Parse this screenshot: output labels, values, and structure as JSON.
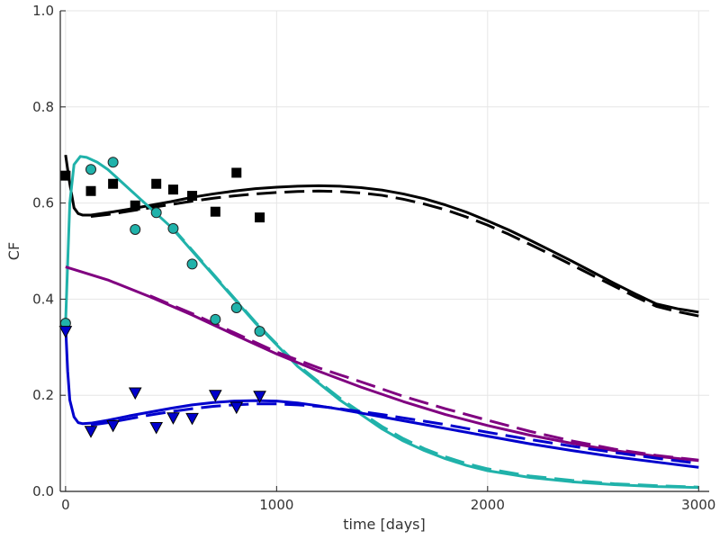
{
  "chart_data": {
    "type": "line",
    "title": "",
    "xlabel": "time [days]",
    "ylabel": "CF",
    "xlim": [
      -25,
      3050
    ],
    "ylim": [
      0,
      1
    ],
    "xticks": [
      0,
      1000,
      2000,
      3000
    ],
    "xtick_labels": [
      "0",
      "1000",
      "2000",
      "3000"
    ],
    "yticks": [
      0,
      0.2,
      0.4,
      0.6,
      0.8,
      1.0
    ],
    "ytick_labels": [
      "0.0",
      "0.2",
      "0.4",
      "0.6",
      "0.8",
      "1.0"
    ],
    "grid": true,
    "legend": "none",
    "colors": {
      "black": "#000000",
      "teal": "#20b2aa",
      "purple": "#800080",
      "blue": "#0000cd"
    },
    "series": [
      {
        "kind": "line",
        "style": "solid",
        "color": "black",
        "points": [
          [
            0,
            0.7
          ],
          [
            20,
            0.64
          ],
          [
            40,
            0.59
          ],
          [
            60,
            0.578
          ],
          [
            80,
            0.575
          ],
          [
            120,
            0.575
          ],
          [
            200,
            0.58
          ],
          [
            300,
            0.587
          ],
          [
            400,
            0.595
          ],
          [
            500,
            0.603
          ],
          [
            600,
            0.612
          ],
          [
            700,
            0.619
          ],
          [
            800,
            0.625
          ],
          [
            900,
            0.63
          ],
          [
            1000,
            0.633
          ],
          [
            1100,
            0.635
          ],
          [
            1200,
            0.636
          ],
          [
            1300,
            0.635
          ],
          [
            1400,
            0.632
          ],
          [
            1500,
            0.627
          ],
          [
            1600,
            0.619
          ],
          [
            1700,
            0.609
          ],
          [
            1800,
            0.596
          ],
          [
            1900,
            0.581
          ],
          [
            2000,
            0.563
          ],
          [
            2100,
            0.544
          ],
          [
            2200,
            0.523
          ],
          [
            2300,
            0.501
          ],
          [
            2400,
            0.479
          ],
          [
            2500,
            0.456
          ],
          [
            2600,
            0.433
          ],
          [
            2700,
            0.411
          ],
          [
            2800,
            0.39
          ],
          [
            2900,
            0.38
          ],
          [
            3000,
            0.373
          ]
        ]
      },
      {
        "kind": "line",
        "style": "dashed",
        "color": "black",
        "points": [
          [
            120,
            0.572
          ],
          [
            200,
            0.576
          ],
          [
            300,
            0.583
          ],
          [
            400,
            0.59
          ],
          [
            500,
            0.597
          ],
          [
            600,
            0.604
          ],
          [
            700,
            0.61
          ],
          [
            800,
            0.615
          ],
          [
            900,
            0.619
          ],
          [
            1000,
            0.622
          ],
          [
            1100,
            0.624
          ],
          [
            1200,
            0.625
          ],
          [
            1300,
            0.624
          ],
          [
            1400,
            0.621
          ],
          [
            1500,
            0.616
          ],
          [
            1600,
            0.608
          ],
          [
            1700,
            0.598
          ],
          [
            1800,
            0.586
          ],
          [
            1900,
            0.571
          ],
          [
            2000,
            0.554
          ],
          [
            2100,
            0.535
          ],
          [
            2200,
            0.514
          ],
          [
            2300,
            0.493
          ],
          [
            2400,
            0.471
          ],
          [
            2500,
            0.449
          ],
          [
            2600,
            0.427
          ],
          [
            2700,
            0.405
          ],
          [
            2800,
            0.385
          ],
          [
            2900,
            0.374
          ],
          [
            3000,
            0.365
          ]
        ]
      },
      {
        "kind": "line",
        "style": "solid",
        "color": "teal",
        "points": [
          [
            0,
            0.35
          ],
          [
            20,
            0.6
          ],
          [
            40,
            0.68
          ],
          [
            70,
            0.697
          ],
          [
            100,
            0.695
          ],
          [
            150,
            0.685
          ],
          [
            200,
            0.67
          ],
          [
            300,
            0.63
          ],
          [
            400,
            0.59
          ],
          [
            500,
            0.55
          ],
          [
            600,
            0.5
          ],
          [
            700,
            0.45
          ],
          [
            800,
            0.4
          ],
          [
            900,
            0.35
          ],
          [
            1000,
            0.305
          ],
          [
            1100,
            0.26
          ],
          [
            1200,
            0.225
          ],
          [
            1300,
            0.19
          ],
          [
            1400,
            0.16
          ],
          [
            1500,
            0.13
          ],
          [
            1600,
            0.105
          ],
          [
            1700,
            0.085
          ],
          [
            1800,
            0.068
          ],
          [
            1900,
            0.054
          ],
          [
            2000,
            0.043
          ],
          [
            2200,
            0.029
          ],
          [
            2400,
            0.02
          ],
          [
            2600,
            0.014
          ],
          [
            2800,
            0.01
          ],
          [
            3000,
            0.008
          ]
        ]
      },
      {
        "kind": "line",
        "style": "dashed",
        "color": "teal",
        "points": [
          [
            500,
            0.552
          ],
          [
            600,
            0.502
          ],
          [
            700,
            0.452
          ],
          [
            800,
            0.402
          ],
          [
            900,
            0.352
          ],
          [
            1000,
            0.307
          ],
          [
            1100,
            0.263
          ],
          [
            1200,
            0.228
          ],
          [
            1300,
            0.194
          ],
          [
            1400,
            0.164
          ],
          [
            1500,
            0.135
          ],
          [
            1600,
            0.11
          ],
          [
            1700,
            0.089
          ],
          [
            1800,
            0.072
          ],
          [
            1900,
            0.058
          ],
          [
            2000,
            0.047
          ],
          [
            2200,
            0.032
          ],
          [
            2400,
            0.023
          ],
          [
            2600,
            0.016
          ],
          [
            2800,
            0.012
          ],
          [
            3000,
            0.009
          ]
        ]
      },
      {
        "kind": "line",
        "style": "solid",
        "color": "purple",
        "points": [
          [
            0,
            0.467
          ],
          [
            200,
            0.44
          ],
          [
            400,
            0.405
          ],
          [
            600,
            0.367
          ],
          [
            800,
            0.326
          ],
          [
            1000,
            0.286
          ],
          [
            1200,
            0.25
          ],
          [
            1400,
            0.217
          ],
          [
            1600,
            0.187
          ],
          [
            1800,
            0.16
          ],
          [
            2000,
            0.137
          ],
          [
            2200,
            0.117
          ],
          [
            2400,
            0.1
          ],
          [
            2600,
            0.085
          ],
          [
            2800,
            0.073
          ],
          [
            3000,
            0.064
          ]
        ]
      },
      {
        "kind": "line",
        "style": "dashed",
        "color": "purple",
        "points": [
          [
            400,
            0.407
          ],
          [
            600,
            0.37
          ],
          [
            800,
            0.33
          ],
          [
            1000,
            0.29
          ],
          [
            1200,
            0.257
          ],
          [
            1400,
            0.228
          ],
          [
            1600,
            0.198
          ],
          [
            1800,
            0.172
          ],
          [
            2000,
            0.148
          ],
          [
            2200,
            0.125
          ],
          [
            2400,
            0.105
          ],
          [
            2600,
            0.088
          ],
          [
            2800,
            0.075
          ],
          [
            3000,
            0.065
          ]
        ]
      },
      {
        "kind": "line",
        "style": "solid",
        "color": "blue",
        "points": [
          [
            0,
            0.345
          ],
          [
            10,
            0.25
          ],
          [
            20,
            0.19
          ],
          [
            40,
            0.155
          ],
          [
            60,
            0.143
          ],
          [
            80,
            0.141
          ],
          [
            120,
            0.142
          ],
          [
            200,
            0.148
          ],
          [
            300,
            0.157
          ],
          [
            400,
            0.165
          ],
          [
            500,
            0.173
          ],
          [
            600,
            0.18
          ],
          [
            700,
            0.185
          ],
          [
            800,
            0.188
          ],
          [
            900,
            0.189
          ],
          [
            1000,
            0.188
          ],
          [
            1100,
            0.184
          ],
          [
            1200,
            0.178
          ],
          [
            1300,
            0.171
          ],
          [
            1400,
            0.163
          ],
          [
            1500,
            0.155
          ],
          [
            1600,
            0.147
          ],
          [
            1700,
            0.139
          ],
          [
            1800,
            0.131
          ],
          [
            1900,
            0.123
          ],
          [
            2000,
            0.115
          ],
          [
            2200,
            0.099
          ],
          [
            2400,
            0.085
          ],
          [
            2600,
            0.072
          ],
          [
            2800,
            0.061
          ],
          [
            3000,
            0.05
          ]
        ]
      },
      {
        "kind": "line",
        "style": "dashed",
        "color": "blue",
        "points": [
          [
            120,
            0.138
          ],
          [
            200,
            0.143
          ],
          [
            300,
            0.151
          ],
          [
            400,
            0.159
          ],
          [
            500,
            0.166
          ],
          [
            600,
            0.172
          ],
          [
            700,
            0.177
          ],
          [
            800,
            0.18
          ],
          [
            900,
            0.182
          ],
          [
            1000,
            0.182
          ],
          [
            1100,
            0.18
          ],
          [
            1200,
            0.177
          ],
          [
            1300,
            0.172
          ],
          [
            1400,
            0.166
          ],
          [
            1500,
            0.16
          ],
          [
            1600,
            0.153
          ],
          [
            1700,
            0.146
          ],
          [
            1800,
            0.139
          ],
          [
            1900,
            0.131
          ],
          [
            2000,
            0.123
          ],
          [
            2200,
            0.108
          ],
          [
            2400,
            0.094
          ],
          [
            2600,
            0.081
          ],
          [
            2800,
            0.069
          ],
          [
            3000,
            0.058
          ]
        ]
      },
      {
        "kind": "scatter",
        "marker": "square",
        "color": "black",
        "points": [
          [
            0,
            0.657
          ],
          [
            120,
            0.625
          ],
          [
            225,
            0.64
          ],
          [
            330,
            0.595
          ],
          [
            430,
            0.64
          ],
          [
            510,
            0.628
          ],
          [
            600,
            0.615
          ],
          [
            710,
            0.582
          ],
          [
            810,
            0.663
          ],
          [
            920,
            0.57
          ]
        ]
      },
      {
        "kind": "scatter",
        "marker": "circle",
        "color": "teal",
        "points": [
          [
            0,
            0.35
          ],
          [
            120,
            0.67
          ],
          [
            225,
            0.685
          ],
          [
            330,
            0.545
          ],
          [
            430,
            0.58
          ],
          [
            510,
            0.547
          ],
          [
            600,
            0.473
          ],
          [
            710,
            0.358
          ],
          [
            810,
            0.382
          ],
          [
            920,
            0.333
          ]
        ]
      },
      {
        "kind": "scatter",
        "marker": "triangle-down",
        "color": "blue",
        "points": [
          [
            0,
            0.333
          ],
          [
            120,
            0.125
          ],
          [
            225,
            0.137
          ],
          [
            330,
            0.205
          ],
          [
            430,
            0.133
          ],
          [
            510,
            0.153
          ],
          [
            600,
            0.152
          ],
          [
            710,
            0.2
          ],
          [
            810,
            0.175
          ],
          [
            920,
            0.198
          ]
        ]
      }
    ]
  }
}
